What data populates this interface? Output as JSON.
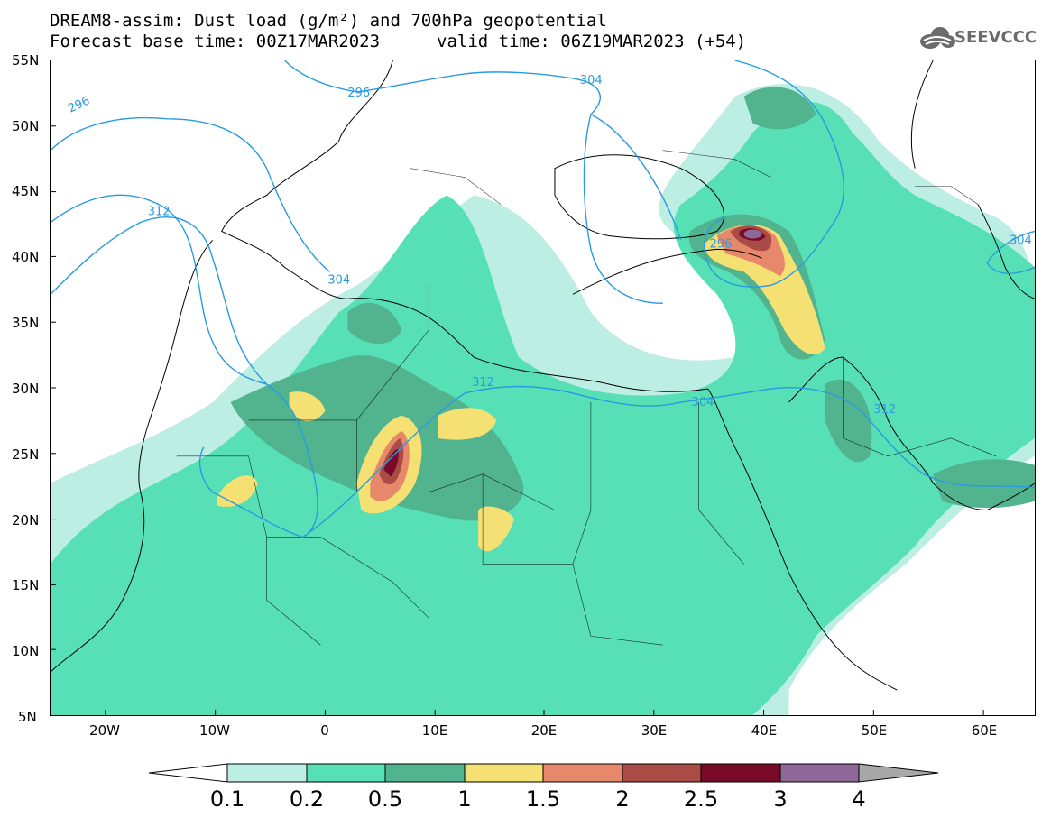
{
  "header": {
    "title_line1": "DREAM8-assim: Dust load (g/m²) and 700hPa geopotential",
    "title_line2": "Forecast base time: 00Z17MAR2023",
    "valid_time": "valid time: 06Z19MAR2023 (+54)",
    "logo_text": "SEEVCCC",
    "logo_icon": "cloud-icon"
  },
  "map": {
    "lat_labels": [
      "55N",
      "50N",
      "45N",
      "40N",
      "35N",
      "30N",
      "25N",
      "20N",
      "15N",
      "10N",
      "5N"
    ],
    "lon_labels": [
      "20W",
      "10W",
      "0",
      "10E",
      "20E",
      "30E",
      "40E",
      "50E",
      "60E"
    ],
    "contour_labels": [
      "296",
      "296",
      "304",
      "312",
      "304",
      "312",
      "304",
      "296",
      "312",
      "304"
    ]
  },
  "legend": {
    "levels": [
      "0.1",
      "0.2",
      "0.5",
      "1",
      "1.5",
      "2",
      "2.5",
      "3",
      "4"
    ],
    "colors": [
      "#ffffff",
      "#bdeee4",
      "#57e0b5",
      "#52b48f",
      "#f5e173",
      "#e8886a",
      "#a84c45",
      "#7a0a2a",
      "#8e6898",
      "#a8a8a8"
    ]
  }
}
